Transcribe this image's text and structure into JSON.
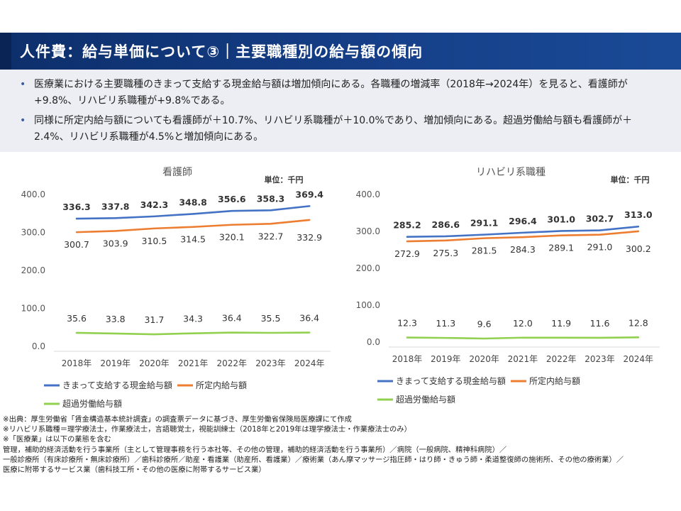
{
  "header": {
    "title": "人件費：給与単価について③｜主要職種別の給与額の傾向"
  },
  "summary": {
    "bullet_symbol": "•",
    "bullets": [
      "医療業における主要職種のきまって支給する現金給与額は増加傾向にある。各職種の増減率（2018年→2024年）を見ると、看護師が+9.8%、リハビリ系職種が+9.8%である。",
      "同様に所定内給与額についても看護師が＋10.7%、リハビリ系職種が＋10.0%であり、増加傾向にある。超過労働給与額も看護師が＋2.4%、リハビリ系職種が4.5%と増加傾向にある。"
    ]
  },
  "chart_data": [
    {
      "type": "line",
      "title": "看護師",
      "unit_label": "単位：千円",
      "categories": [
        "2018年",
        "2019年",
        "2020年",
        "2021年",
        "2022年",
        "2023年",
        "2024年"
      ],
      "ylim": [
        0,
        400
      ],
      "yticks": [
        "0.0",
        "100.0",
        "200.0",
        "300.0",
        "400.0"
      ],
      "grid": false,
      "legend": "bottom",
      "series": [
        {
          "name": "きまって支給する現金給与額",
          "color": "#4472c4",
          "values": [
            336.3,
            337.8,
            342.3,
            348.8,
            356.6,
            358.3,
            369.4
          ],
          "labels": [
            "336.3",
            "337.8",
            "342.3",
            "348.8",
            "356.6",
            "358.3",
            "369.4"
          ]
        },
        {
          "name": "所定内給与額",
          "color": "#ed7d31",
          "values": [
            300.7,
            303.9,
            310.5,
            314.5,
            320.1,
            322.7,
            332.9
          ],
          "labels": [
            "300.7",
            "303.9",
            "310.5",
            "314.5",
            "320.1",
            "322.7",
            "332.9"
          ]
        },
        {
          "name": "超過労働給与額",
          "color": "#92d050",
          "values": [
            35.6,
            33.8,
            31.7,
            34.3,
            36.4,
            35.5,
            36.4
          ],
          "labels": [
            "35.6",
            "33.8",
            "31.7",
            "34.3",
            "36.4",
            "35.5",
            "36.4"
          ]
        }
      ]
    },
    {
      "type": "line",
      "title": "リハビリ系職種",
      "unit_label": "単位：千円",
      "categories": [
        "2018年",
        "2019年",
        "2020年",
        "2021年",
        "2022年",
        "2023年",
        "2024年"
      ],
      "ylim": [
        0,
        400
      ],
      "yticks": [
        "0.0",
        "100.0",
        "200.0",
        "300.0",
        "400.0"
      ],
      "grid": false,
      "legend": "bottom",
      "series": [
        {
          "name": "きまって支給する現金給与額",
          "color": "#4472c4",
          "values": [
            285.2,
            286.6,
            291.1,
            296.4,
            301.0,
            302.7,
            313.0
          ],
          "labels": [
            "285.2",
            "286.6",
            "291.1",
            "296.4",
            "301.0",
            "302.7",
            "313.0"
          ]
        },
        {
          "name": "所定内給与額",
          "color": "#ed7d31",
          "values": [
            272.9,
            275.3,
            281.5,
            284.3,
            289.1,
            291.0,
            300.2
          ],
          "labels": [
            "272.9",
            "275.3",
            "281.5",
            "284.3",
            "289.1",
            "291.0",
            "300.2"
          ]
        },
        {
          "name": "超過労働給与額",
          "color": "#92d050",
          "values": [
            12.3,
            11.3,
            9.6,
            12.0,
            11.9,
            11.6,
            12.8
          ],
          "labels": [
            "12.3",
            "11.3",
            "9.6",
            "12.0",
            "11.9",
            "11.6",
            "12.8"
          ]
        }
      ]
    }
  ],
  "notes": [
    "※出典：厚生労働省「賃金構造基本統計調査」の調査票データに基づき、厚生労働省保険局医療課にて作成",
    "※リハビリ系職種＝理学療法士，作業療法士，言語聴覚士，視能訓練士（2018年と2019年は理学療法士・作業療法士のみ）",
    "※「医療業」は以下の業態を含む",
    "管理，補助的経済活動を行う事業所（主として管理事務を行う本社等、その他の管理，補助的経済活動を行う事業所）／病院（一般病院、精神科病院）／",
    "一般診療所（有床診療所・無床診療所）／歯科診療所／助産・看護業（助産所、看護業）／療術業（あん摩マッサージ指圧師・はり師・きゅう師・柔道整復師の施術所、その他の療術業）／",
    "医療に附帯するサービス業（歯科技工所・その他の医療に附帯するサービス業）"
  ]
}
